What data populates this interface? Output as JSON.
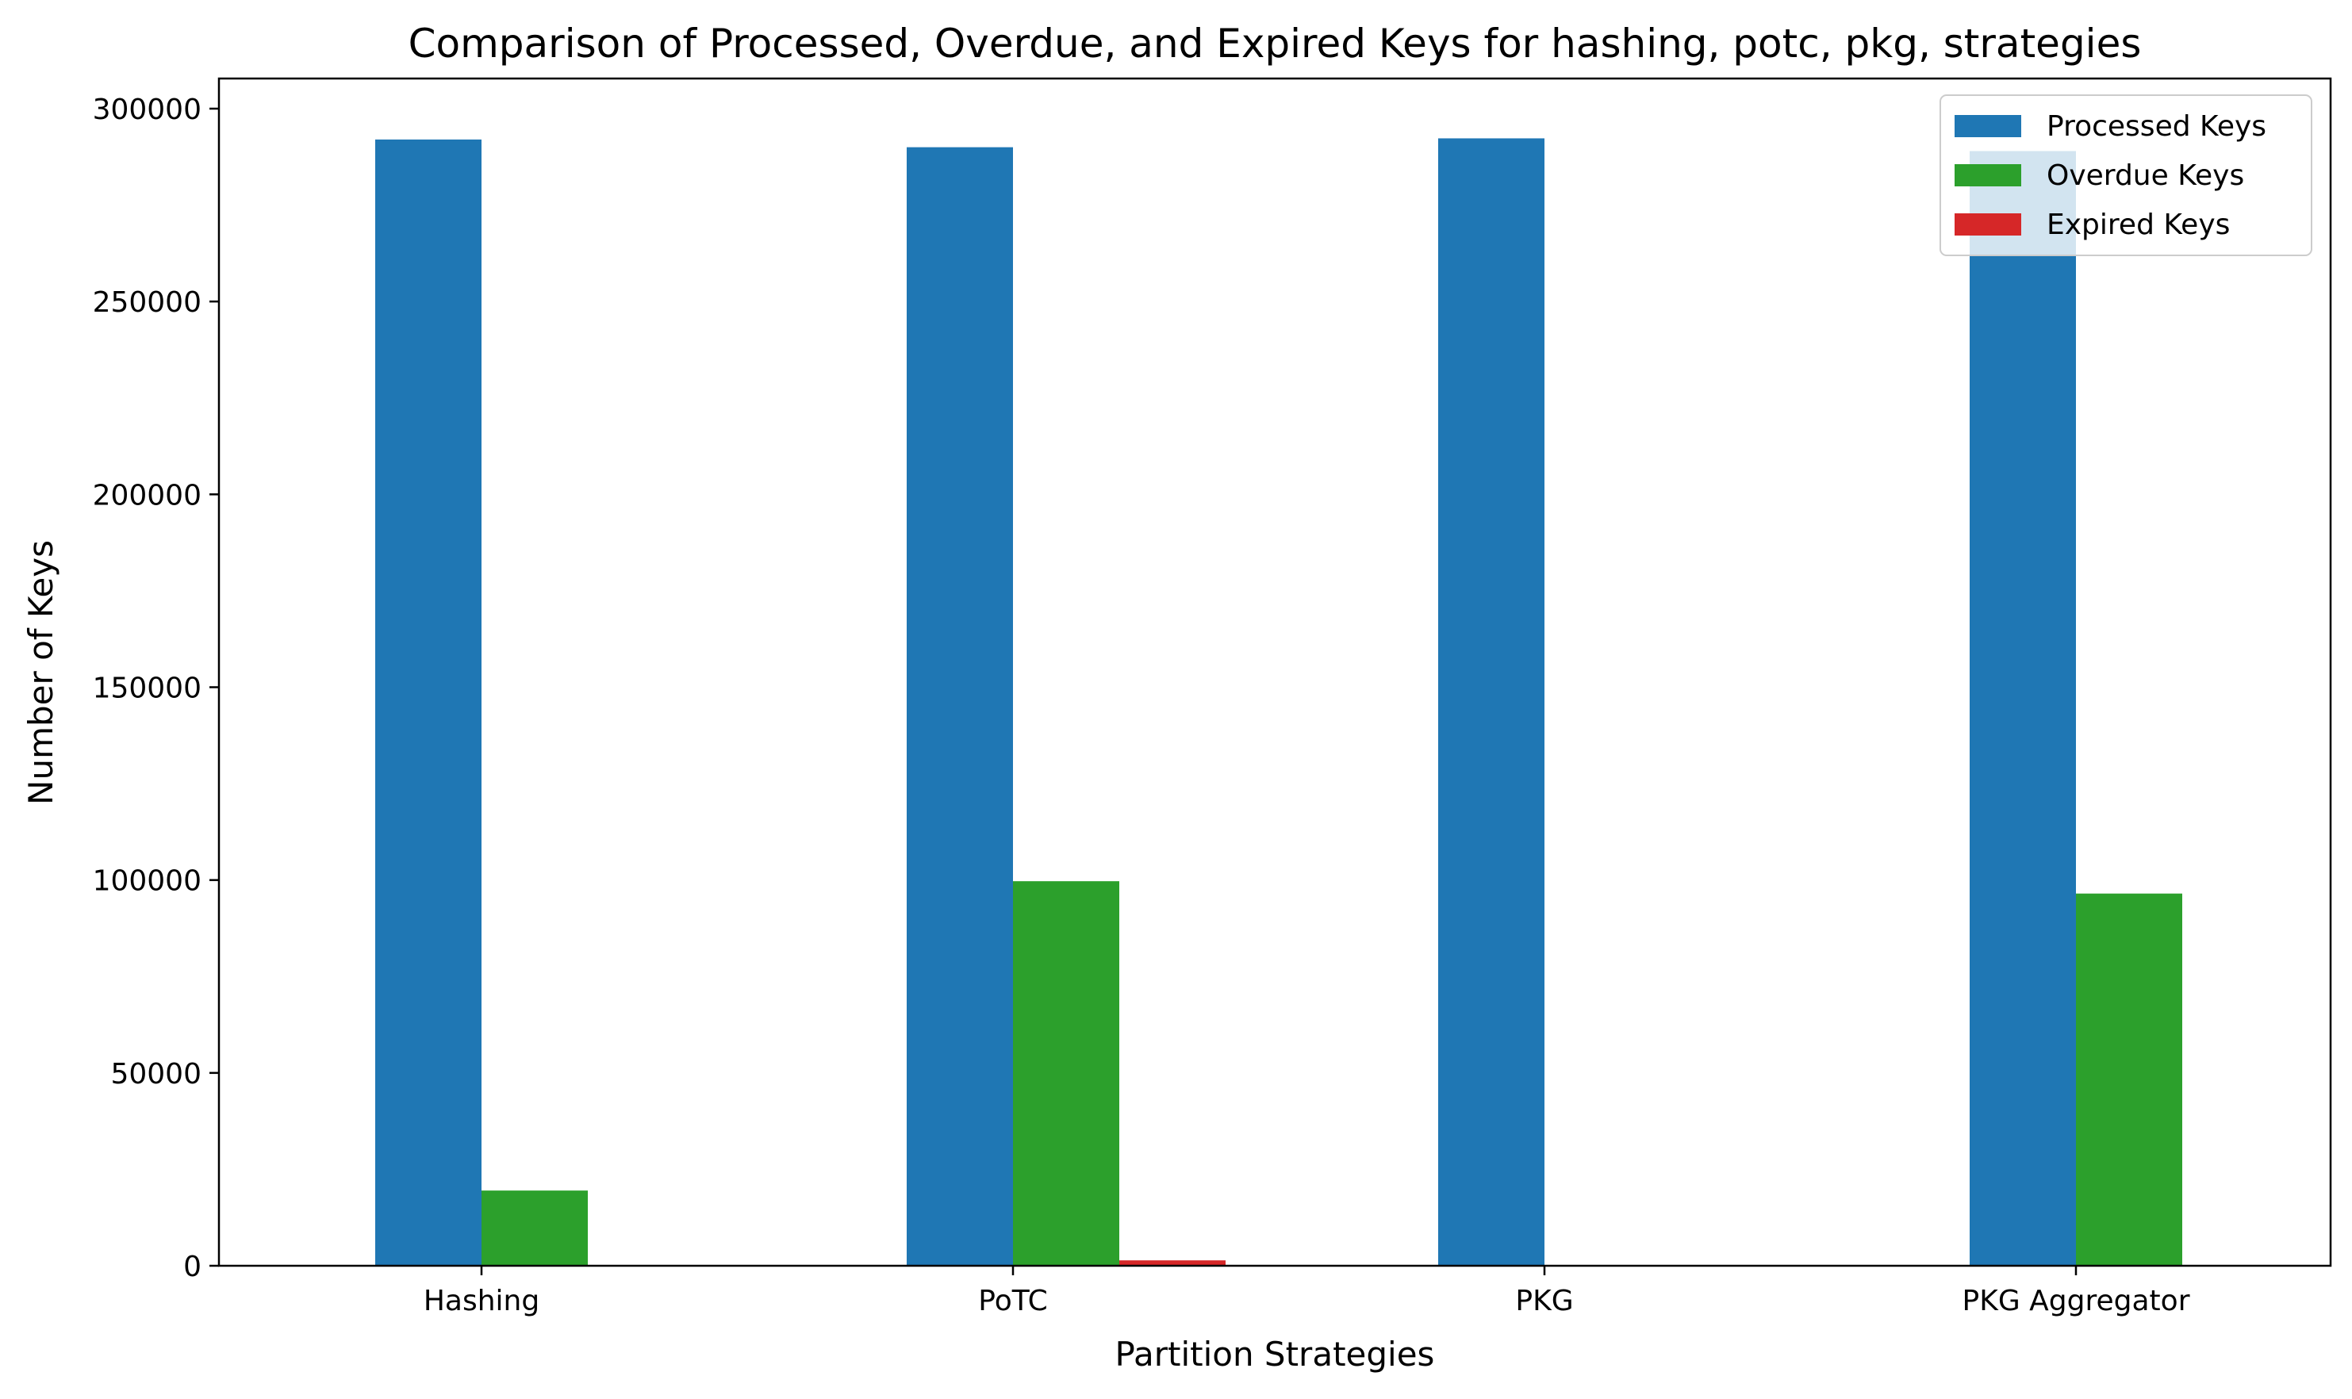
{
  "chart_data": {
    "type": "bar",
    "title": "Comparison of Processed, Overdue, and Expired Keys for hashing, potc, pkg, strategies",
    "xlabel": "Partition Strategies",
    "ylabel": "Number of Keys",
    "categories": [
      "Hashing",
      "PoTC",
      "PKG",
      "PKG Aggregator"
    ],
    "series": [
      {
        "name": "Processed Keys",
        "color": "#1f77b4",
        "values": [
          292000,
          290000,
          292300,
          289000
        ]
      },
      {
        "name": "Overdue Keys",
        "color": "#2ca02c",
        "values": [
          19500,
          99700,
          0,
          96500
        ]
      },
      {
        "name": "Expired Keys",
        "color": "#d62728",
        "values": [
          0,
          1400,
          0,
          0
        ]
      }
    ],
    "ylim": [
      0,
      300000
    ],
    "yticks": [
      0,
      50000,
      100000,
      150000,
      200000,
      250000,
      300000
    ],
    "ytick_labels": [
      "0",
      "50000",
      "100000",
      "150000",
      "200000",
      "250000",
      "300000"
    ],
    "grid": false,
    "legend_position": "top-right"
  }
}
